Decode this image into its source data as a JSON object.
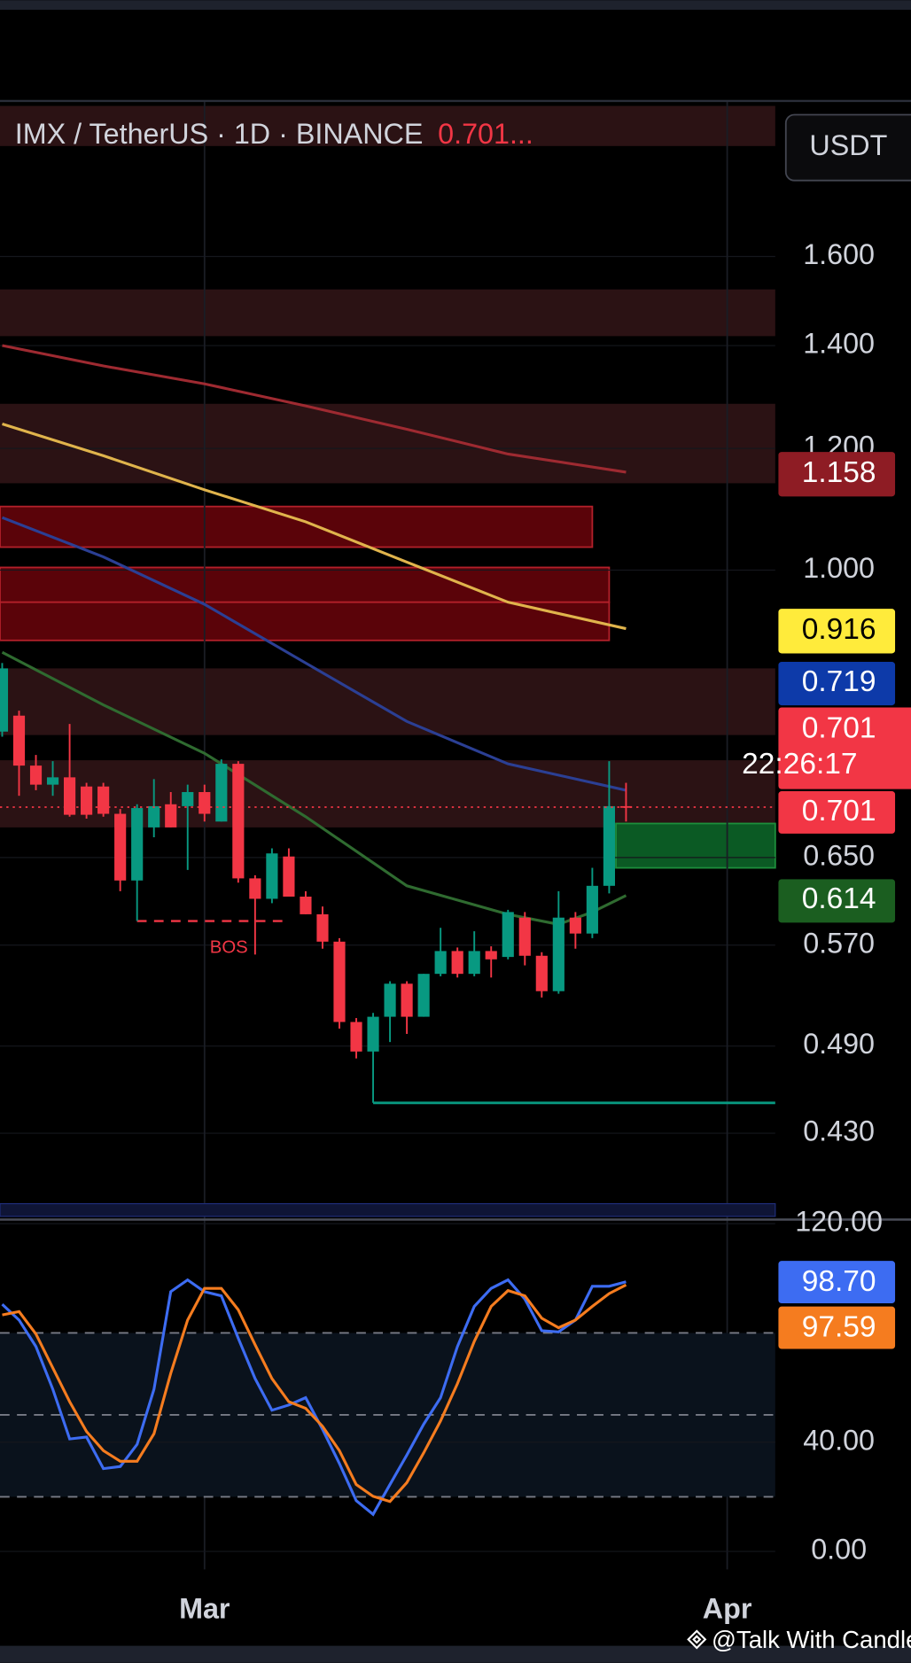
{
  "header": {
    "symbol": "IMX / TetherUS · 1D · BINANCE",
    "price": "0.701...",
    "currency_button": "USDT"
  },
  "watermark": "@Talk With Candle",
  "chart_data": [
    {
      "type": "candlestick",
      "log_scale": true,
      "grid": true,
      "ylim": [
        0.379,
        2.02
      ],
      "yticks": [
        {
          "value": 1.6,
          "label": "1.600"
        },
        {
          "value": 1.4,
          "label": "1.400"
        },
        {
          "value": 1.2,
          "label": "1.200"
        },
        {
          "value": 1.0,
          "label": "1.000"
        },
        {
          "value": 0.65,
          "label": "0.650"
        },
        {
          "value": 0.57,
          "label": "0.570"
        },
        {
          "value": 0.49,
          "label": "0.490"
        },
        {
          "value": 0.43,
          "label": "0.430"
        }
      ],
      "xlim": [
        -0.13,
        45.85
      ],
      "xticks": [
        {
          "value": 12,
          "label": "Mar"
        },
        {
          "value": 43,
          "label": "Apr"
        }
      ],
      "up_color": "#089981",
      "down_color": "#f23645",
      "candles": {
        "open": [
          0.785,
          0.804,
          0.746,
          0.725,
          0.733,
          0.723,
          0.723,
          0.694,
          0.628,
          0.68,
          0.704,
          0.702,
          0.717,
          0.686,
          0.748,
          0.63,
          0.611,
          0.651,
          0.613,
          0.597,
          0.573,
          0.508,
          0.486,
          0.512,
          0.538,
          0.512,
          0.546,
          0.565,
          0.546,
          0.565,
          0.56,
          0.594,
          0.561,
          0.532,
          0.594,
          0.58,
          0.623,
          0.702
        ],
        "high": [
          0.87,
          0.81,
          0.758,
          0.751,
          0.794,
          0.727,
          0.727,
          0.699,
          0.704,
          0.731,
          0.717,
          0.725,
          0.725,
          0.753,
          0.751,
          0.633,
          0.659,
          0.659,
          0.618,
          0.604,
          0.576,
          0.511,
          0.515,
          0.54,
          0.54,
          0.546,
          0.585,
          0.568,
          0.582,
          0.569,
          0.601,
          0.599,
          0.564,
          0.618,
          0.599,
          0.64,
          0.751,
          0.727
        ],
        "low": [
          0.779,
          0.713,
          0.719,
          0.713,
          0.691,
          0.689,
          0.691,
          0.618,
          0.591,
          0.67,
          0.68,
          0.638,
          0.686,
          0.686,
          0.626,
          0.562,
          0.607,
          0.613,
          0.597,
          0.567,
          0.503,
          0.481,
          0.45,
          0.493,
          0.499,
          0.512,
          0.544,
          0.543,
          0.544,
          0.543,
          0.558,
          0.553,
          0.527,
          0.53,
          0.567,
          0.576,
          0.616,
          0.686
        ],
        "close": [
          0.863,
          0.746,
          0.725,
          0.733,
          0.693,
          0.693,
          0.694,
          0.628,
          0.7,
          0.702,
          0.68,
          0.717,
          0.694,
          0.748,
          0.63,
          0.611,
          0.654,
          0.613,
          0.597,
          0.573,
          0.508,
          0.486,
          0.512,
          0.538,
          0.512,
          0.546,
          0.565,
          0.546,
          0.565,
          0.558,
          0.599,
          0.561,
          0.532,
          0.594,
          0.58,
          0.623,
          0.702,
          0.701
        ]
      },
      "series": [
        {
          "color": "#9e2a31",
          "label_color": "#8e1c24",
          "x": [
            0,
            6,
            12,
            18,
            24,
            30,
            37
          ],
          "values": [
            1.4,
            1.358,
            1.322,
            1.279,
            1.235,
            1.19,
            1.158
          ]
        },
        {
          "color": "#e0b44c",
          "label_color": "#ffeb3b",
          "x": [
            0,
            6,
            12,
            18,
            24,
            30,
            37
          ],
          "values": [
            1.245,
            1.187,
            1.128,
            1.075,
            1.012,
            0.953,
            0.916
          ]
        },
        {
          "color": "#2b3f94",
          "label_color": "#0d3aa9",
          "x": [
            0,
            6,
            12,
            18,
            24,
            30,
            37
          ],
          "values": [
            1.082,
            1.02,
            0.95,
            0.87,
            0.797,
            0.748,
            0.719
          ]
        },
        {
          "color": "#2f6b30",
          "label_color": "#1b5e20",
          "x": [
            0,
            6,
            12,
            18,
            24,
            30,
            33,
            35,
            37
          ],
          "values": [
            0.884,
            0.817,
            0.76,
            0.691,
            0.623,
            0.597,
            0.588,
            0.599,
            0.614
          ]
        }
      ],
      "zones": [
        {
          "top": 2.005,
          "bottom": 1.888,
          "color": "#2b1214"
        },
        {
          "top": 1.523,
          "bottom": 1.42,
          "color": "#2b1214"
        },
        {
          "top": 1.283,
          "bottom": 1.139,
          "color": "#2b1214"
        },
        {
          "top": 1.1,
          "bottom": 1.035,
          "to": 35,
          "color": "#5a0309",
          "border": "#b3202a"
        },
        {
          "top": 1.004,
          "bottom": 0.953,
          "to": 36,
          "color": "#5a0309",
          "border": "#b3202a"
        },
        {
          "top": 0.953,
          "bottom": 0.9,
          "to": 36,
          "color": "#5a0309",
          "border": "#b3202a"
        },
        {
          "top": 0.863,
          "bottom": 0.781,
          "color": "#2b1214"
        },
        {
          "top": 0.752,
          "bottom": 0.68,
          "color": "#2b1214"
        },
        {
          "top": 0.684,
          "bottom": 0.64,
          "from": 36.4,
          "color": "#0b5a24",
          "border": "#1d8f3c"
        }
      ],
      "bos": {
        "label": "BOS",
        "level": 0.591,
        "from": 8,
        "to": 17,
        "color": "#f23645"
      },
      "support": {
        "level": 0.45,
        "from": 22,
        "color": "#089981"
      },
      "countdown": "22:26:17"
    },
    {
      "type": "line",
      "grid": true,
      "ylim": [
        -6.6,
        121.5
      ],
      "yticks": [
        {
          "value": 0,
          "label": "0.00"
        },
        {
          "value": 40,
          "label": "40.00"
        },
        {
          "value": 120,
          "label": "120.00"
        }
      ],
      "levels": [
        80,
        50,
        20
      ],
      "series": [
        {
          "color": "#3d6cf2",
          "values": [
            90.5,
            84.7,
            75.0,
            59.4,
            41.2,
            41.9,
            30.3,
            31.1,
            39.2,
            59.4,
            95.1,
            99.4,
            95.1,
            93.6,
            78.1,
            63.3,
            51.7,
            53.6,
            56.3,
            44.7,
            32.2,
            18.6,
            13.6,
            24.5,
            35.3,
            46.6,
            56.3,
            75.0,
            89.7,
            96.3,
            99.4,
            92.4,
            80.8,
            80.4,
            84.7,
            97.1,
            97.1,
            98.7
          ],
          "value_labels": [
            null,
            null,
            null,
            null,
            null,
            null,
            null,
            null,
            null,
            null,
            null,
            null,
            null,
            null,
            null,
            null,
            null,
            null,
            null,
            null,
            null,
            null,
            null,
            null,
            null,
            null,
            null,
            null,
            null,
            null,
            null,
            null,
            null,
            null,
            null,
            null,
            null,
            "98.70"
          ]
        },
        {
          "color": "#f57c1f",
          "values": [
            86.6,
            87.8,
            79.6,
            67.2,
            54.8,
            43.9,
            36.9,
            33.0,
            33.0,
            43.1,
            65.2,
            84.7,
            96.3,
            96.3,
            88.5,
            75.7,
            63.3,
            54.8,
            52.4,
            45.8,
            36.9,
            24.5,
            20.2,
            18.3,
            25.2,
            36.1,
            47.8,
            61.4,
            76.9,
            89.7,
            95.5,
            93.6,
            85.4,
            81.9,
            84.7,
            89.7,
            94.4,
            97.59
          ],
          "value_labels": [
            null,
            null,
            null,
            null,
            null,
            null,
            null,
            null,
            null,
            null,
            null,
            null,
            null,
            null,
            null,
            null,
            null,
            null,
            null,
            null,
            null,
            null,
            null,
            null,
            null,
            null,
            null,
            null,
            null,
            null,
            null,
            null,
            null,
            null,
            null,
            null,
            null,
            "97.59"
          ]
        }
      ]
    }
  ]
}
